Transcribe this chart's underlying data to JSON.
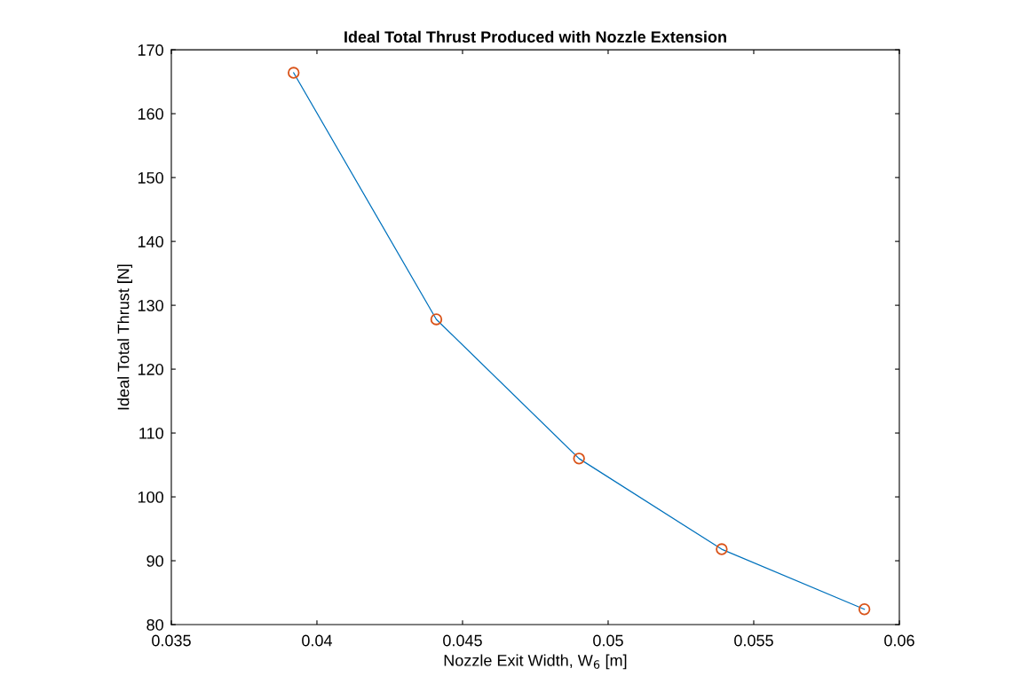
{
  "chart_data": {
    "type": "line",
    "title": "Ideal Total Thrust Produced with Nozzle Extension",
    "xlabel": "Nozzle Exit Width, W$_{6}$ [m]",
    "ylabel": "Ideal Total Thrust [N]",
    "x": [
      0.0392,
      0.0441,
      0.049,
      0.0539,
      0.0588
    ],
    "series": [
      {
        "color": "#0072bd",
        "values": [
          166.4,
          127.8,
          106.0,
          91.8,
          82.4
        ]
      },
      {
        "type": "scatter",
        "color": "#d95319",
        "marker": "circle",
        "values": [
          166.4,
          127.8,
          106.0,
          91.8,
          82.4
        ]
      }
    ],
    "xlim": [
      0.035,
      0.06
    ],
    "xticks": [
      0.035,
      0.04,
      0.045,
      0.05,
      0.055,
      0.06
    ],
    "ylim": [
      80,
      170
    ],
    "yticks": [
      80,
      90,
      100,
      110,
      120,
      130,
      140,
      150,
      160,
      170
    ],
    "grid": false,
    "legend": false
  }
}
